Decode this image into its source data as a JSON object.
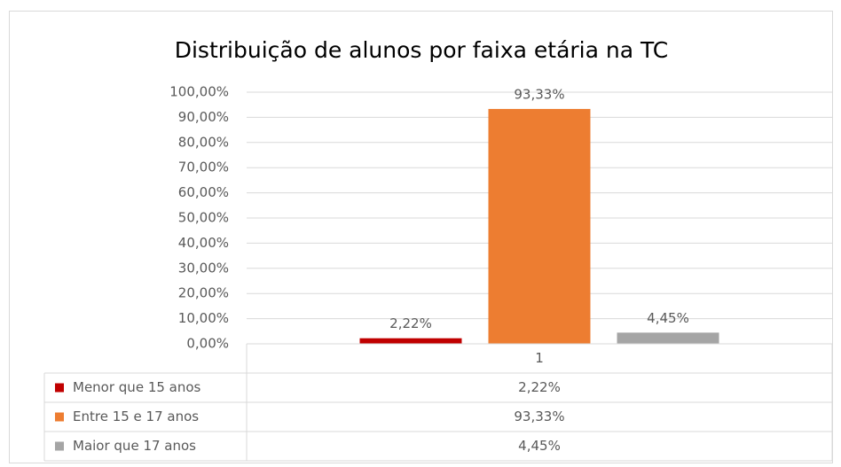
{
  "chart_data": {
    "type": "bar",
    "title": "Distribuição de alunos por faixa etária na TC",
    "categories": [
      "1"
    ],
    "series": [
      {
        "name": "Menor que 15 anos",
        "color": "#c00000",
        "values": [
          2.22
        ],
        "value_labels": [
          "2,22%"
        ]
      },
      {
        "name": "Entre 15 e 17 anos",
        "color": "#ed7d31",
        "values": [
          93.33
        ],
        "value_labels": [
          "93,33%"
        ]
      },
      {
        "name": "Maior que 17 anos",
        "color": "#a5a5a5",
        "values": [
          4.45
        ],
        "value_labels": [
          "4,45%"
        ]
      }
    ],
    "ylim": [
      0,
      100
    ],
    "yticks": [
      {
        "value": 0,
        "label": "0,00%"
      },
      {
        "value": 10,
        "label": "10,00%"
      },
      {
        "value": 20,
        "label": "20,00%"
      },
      {
        "value": 30,
        "label": "30,00%"
      },
      {
        "value": 40,
        "label": "40,00%"
      },
      {
        "value": 50,
        "label": "50,00%"
      },
      {
        "value": 60,
        "label": "60,00%"
      },
      {
        "value": 70,
        "label": "70,00%"
      },
      {
        "value": 80,
        "label": "80,00%"
      },
      {
        "value": 90,
        "label": "90,00%"
      },
      {
        "value": 100,
        "label": "100,00%"
      }
    ],
    "grid": true
  }
}
